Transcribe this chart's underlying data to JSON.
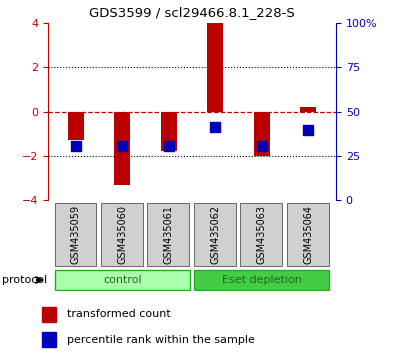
{
  "title": "GDS3599 / scl29466.8.1_228-S",
  "samples": [
    "GSM435059",
    "GSM435060",
    "GSM435061",
    "GSM435062",
    "GSM435063",
    "GSM435064"
  ],
  "red_bars": [
    -1.3,
    -3.3,
    -1.8,
    4.0,
    -2.0,
    0.2
  ],
  "blue_squares_y": [
    -1.55,
    -1.55,
    -1.55,
    -0.72,
    -1.55,
    -0.82
  ],
  "groups": [
    {
      "label": "control",
      "start": 0,
      "end": 2,
      "color": "#AAFFAA",
      "edge": "#22AA22"
    },
    {
      "label": "Eset depletion",
      "start": 3,
      "end": 5,
      "color": "#44CC44",
      "edge": "#22AA22"
    }
  ],
  "ylim": [
    -4,
    4
  ],
  "y_ticks_left": [
    -4,
    -2,
    0,
    2,
    4
  ],
  "y_ticks_right_vals": [
    0,
    25,
    50,
    75,
    100
  ],
  "y_ticks_right_labels": [
    "0",
    "25",
    "50",
    "75",
    "100%"
  ],
  "red_color": "#BB0000",
  "blue_color": "#0000BB",
  "bar_width": 0.35,
  "blue_square_size": 55,
  "protocol_label": "protocol",
  "legend_items": [
    "transformed count",
    "percentile rank within the sample"
  ],
  "legend_colors": [
    "#BB0000",
    "#0000BB"
  ]
}
